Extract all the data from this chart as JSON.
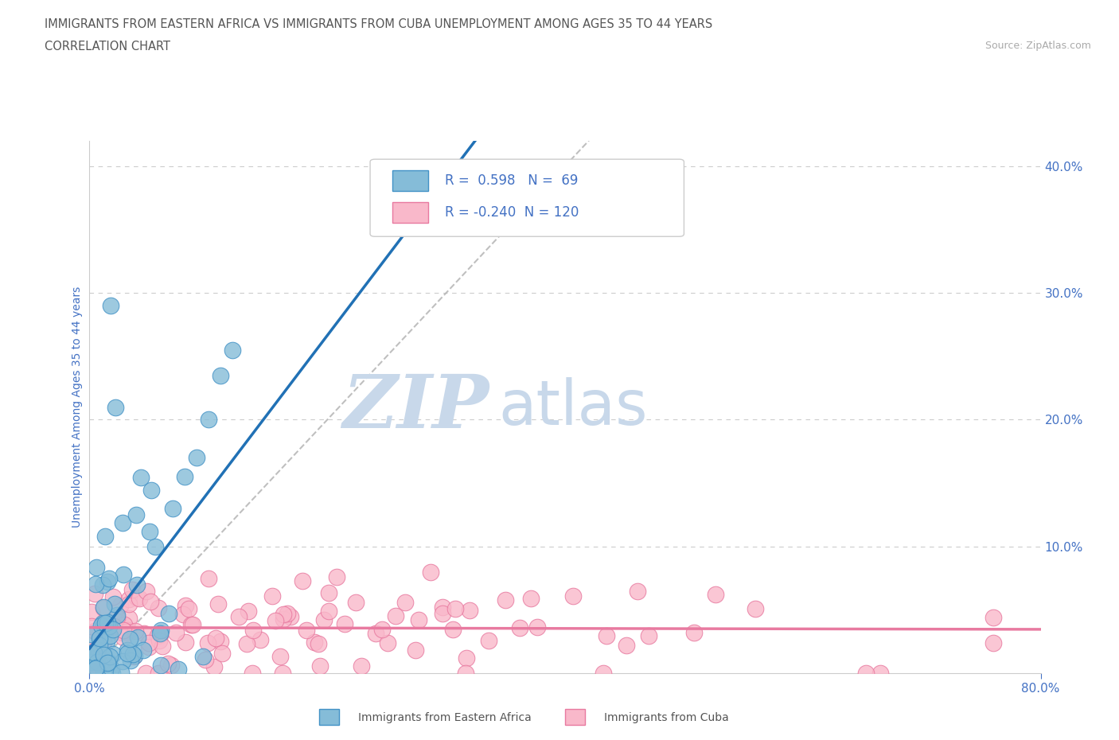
{
  "title_line1": "IMMIGRANTS FROM EASTERN AFRICA VS IMMIGRANTS FROM CUBA UNEMPLOYMENT AMONG AGES 35 TO 44 YEARS",
  "title_line2": "CORRELATION CHART",
  "source_text": "Source: ZipAtlas.com",
  "ylabel": "Unemployment Among Ages 35 to 44 years",
  "xlim": [
    0.0,
    0.8
  ],
  "ylim": [
    0.0,
    0.42
  ],
  "yticks": [
    0.0,
    0.1,
    0.2,
    0.3,
    0.4
  ],
  "ytick_labels": [
    "",
    "10.0%",
    "20.0%",
    "30.0%",
    "40.0%"
  ],
  "xtick_left": "0.0%",
  "xtick_right": "80.0%",
  "series1_color": "#85bcd8",
  "series1_edge_color": "#4292c6",
  "series2_color": "#f9b8ca",
  "series2_edge_color": "#e87aa0",
  "legend_R1": "0.598",
  "legend_N1": "69",
  "legend_R2": "-0.240",
  "legend_N2": "120",
  "trend1_color": "#2171b5",
  "trend2_color": "#e87aa0",
  "identity_color": "#b0b0b0",
  "watermark_zip": "ZIP",
  "watermark_atlas": "atlas",
  "watermark_color": "#c8d8ea",
  "title_color": "#555555",
  "tick_color": "#4472c4",
  "grid_color": "#cccccc",
  "legend_label1": "Immigrants from Eastern Africa",
  "legend_label2": "Immigrants from Cuba",
  "source_color": "#aaaaaa"
}
